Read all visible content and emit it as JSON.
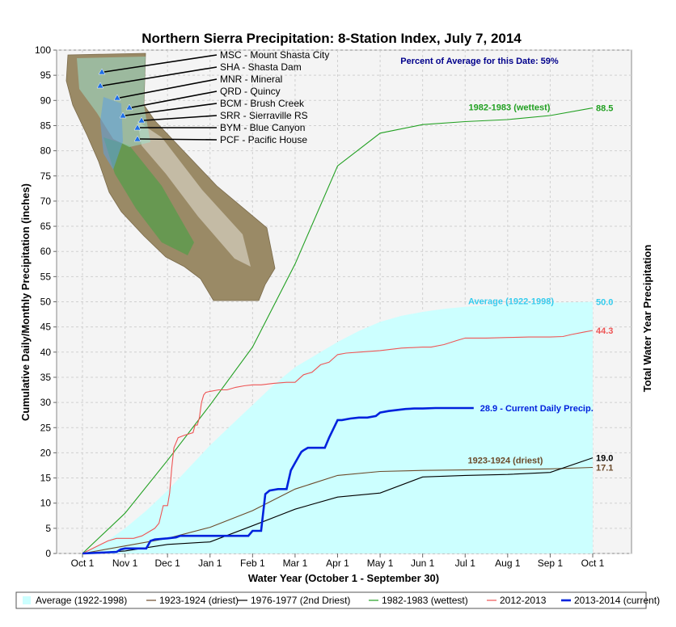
{
  "chart_data": {
    "type": "line",
    "title": "Northern Sierra Precipitation: 8-Station Index, July 7, 2014",
    "xlabel": "Water Year (October 1 - September 30)",
    "ylabel": "Cumulative Daily/Monthly Precipitation (inches)",
    "y2label": "Total Water Year Precipitation",
    "percent_note": "Percent of Average for this Date: 59%",
    "x_ticks": [
      "Oct 1",
      "Nov 1",
      "Dec 1",
      "Jan 1",
      "Feb 1",
      "Mar 1",
      "Apr 1",
      "May 1",
      "Jun 1",
      "Jul 1",
      "Aug 1",
      "Sep 1",
      "Oct 1"
    ],
    "ylim": [
      0,
      100
    ],
    "y_ticks": [
      0,
      5,
      10,
      15,
      20,
      25,
      30,
      35,
      40,
      45,
      50,
      55,
      60,
      65,
      70,
      75,
      80,
      85,
      90,
      95,
      100
    ],
    "grid": true,
    "legend_position": "bottom",
    "colors": {
      "average": "#ccffff",
      "average_label": "#33ccee",
      "driest": "#6b4a2a",
      "dry2": "#000000",
      "wettest": "#22a022",
      "y2013": "#ee5555",
      "current": "#0022dd",
      "note": "#00008b"
    },
    "series": [
      {
        "key": "average",
        "name": "Average (1922-1998)",
        "type": "area",
        "x": [
          0,
          0.5,
          1,
          1.5,
          2,
          2.5,
          3,
          3.5,
          4,
          4.5,
          5,
          5.5,
          6,
          6.5,
          7,
          7.5,
          8,
          8.5,
          9,
          10,
          11,
          12
        ],
        "y": [
          0,
          2,
          5,
          8.5,
          12.5,
          17,
          21.5,
          25.5,
          29.5,
          33.5,
          37,
          39.5,
          42,
          44.2,
          46,
          47.2,
          48,
          48.6,
          49,
          49.5,
          49.8,
          50
        ],
        "label": "Average (1922-1998)",
        "end_value": "50.0"
      },
      {
        "key": "driest",
        "name": "1923-1924 (driest)",
        "x": [
          0,
          1,
          2,
          3,
          4,
          5,
          6,
          7,
          8,
          9,
          10,
          11,
          12
        ],
        "y": [
          0,
          1.5,
          3,
          5.2,
          8.5,
          12.8,
          15.5,
          16.3,
          16.5,
          16.6,
          16.7,
          16.8,
          17.1
        ],
        "label": "1923-1924 (driest)",
        "end_value": "17.1"
      },
      {
        "key": "dry2",
        "name": "1976-1977 (2nd Driest)",
        "x": [
          0,
          1,
          2,
          3,
          4,
          5,
          6,
          7,
          8,
          9,
          10,
          11,
          12
        ],
        "y": [
          0,
          0.5,
          1.8,
          2.3,
          5.5,
          8.8,
          11.2,
          12,
          15.2,
          15.5,
          15.7,
          16.1,
          19
        ],
        "end_value": "19.0"
      },
      {
        "key": "wettest",
        "name": "1982-1983 (wettest)",
        "x": [
          0,
          1,
          2,
          3,
          4,
          5,
          6,
          7,
          8,
          9,
          10,
          11,
          12
        ],
        "y": [
          0,
          8,
          18.5,
          29.5,
          41,
          57.5,
          77,
          83.5,
          85.2,
          85.8,
          86.2,
          87,
          88.5
        ],
        "label": "1982-1983 (wettest)",
        "end_value": "88.5"
      },
      {
        "key": "y2013",
        "name": "2012-2013",
        "x": [
          0,
          0.6,
          0.8,
          1,
          1.2,
          1.4,
          1.5,
          1.7,
          1.8,
          1.9,
          2,
          2.05,
          2.1,
          2.15,
          2.25,
          2.4,
          2.6,
          2.65,
          2.7,
          2.75,
          2.8,
          2.85,
          2.9,
          3,
          3.2,
          3.4,
          3.6,
          3.8,
          4,
          4.2,
          4.5,
          4.8,
          5,
          5.2,
          5.4,
          5.6,
          5.8,
          6,
          6.2,
          6.5,
          7,
          7.5,
          8,
          8.2,
          8.5,
          8.8,
          9,
          9.2,
          9.5,
          10,
          10.5,
          11,
          11.3,
          11.5,
          11.8,
          12
        ],
        "y": [
          0,
          2.5,
          3,
          3,
          3,
          3.5,
          4,
          5,
          6,
          9.5,
          9.5,
          12,
          17,
          21,
          23,
          23.5,
          24,
          25.5,
          25.5,
          27,
          30,
          31.5,
          32,
          32.2,
          32.5,
          32.5,
          33,
          33.3,
          33.5,
          33.5,
          33.8,
          34,
          34,
          35.5,
          36,
          37.5,
          38,
          39.5,
          39.8,
          40,
          40.3,
          40.8,
          41,
          41,
          41.5,
          42.3,
          42.8,
          42.8,
          42.8,
          42.9,
          43,
          43,
          43.1,
          43.5,
          44,
          44.3
        ],
        "end_value": "44.3"
      },
      {
        "key": "current",
        "name": "2013-2014 (current)",
        "x": [
          0,
          0.8,
          0.9,
          1,
          1.2,
          1.5,
          1.6,
          1.7,
          2,
          2.2,
          2.3,
          2.5,
          3,
          3.5,
          3.9,
          4,
          4.2,
          4.3,
          4.4,
          4.6,
          4.8,
          4.9,
          5,
          5.1,
          5.15,
          5.2,
          5.3,
          5.4,
          5.7,
          5.8,
          6,
          6.1,
          6.3,
          6.5,
          6.7,
          6.9,
          7,
          7.2,
          7.4,
          7.6,
          7.8,
          8,
          8.3,
          8.6,
          9,
          9.2
        ],
        "y": [
          0,
          0.3,
          0.8,
          1,
          1,
          1,
          2.5,
          2.8,
          3,
          3.2,
          3.5,
          3.5,
          3.5,
          3.5,
          3.5,
          4.5,
          4.5,
          11.8,
          12.5,
          12.8,
          12.8,
          16.5,
          18,
          19.5,
          20.2,
          20.5,
          21,
          21,
          21,
          23,
          26.5,
          26.5,
          26.8,
          27,
          27,
          27.3,
          28,
          28.3,
          28.5,
          28.7,
          28.8,
          28.8,
          28.9,
          28.9,
          28.9,
          28.9
        ],
        "label": "28.9 -  Current Daily Precip.",
        "end_value": ""
      }
    ],
    "legend": [
      {
        "key": "average",
        "text": "Average (1922-1998)"
      },
      {
        "key": "driest",
        "text": "1923-1924 (driest)"
      },
      {
        "key": "dry2",
        "text": "1976-1977 (2nd Driest)"
      },
      {
        "key": "wettest",
        "text": "1982-1983 (wettest)"
      },
      {
        "key": "y2013",
        "text": "2012-2013"
      },
      {
        "key": "current",
        "text": "2013-2014 (current)"
      }
    ],
    "stations": [
      {
        "code": "MSC",
        "label": "MSC - Mount Shasta City"
      },
      {
        "code": "SHA",
        "label": "SHA - Shasta Dam"
      },
      {
        "code": "MNR",
        "label": "MNR - Mineral"
      },
      {
        "code": "QRD",
        "label": "QRD - Quincy"
      },
      {
        "code": "BCM",
        "label": "BCM - Brush Creek"
      },
      {
        "code": "SRR",
        "label": "SRR - Sierraville RS"
      },
      {
        "code": "BYM",
        "label": "BYM - Blue Canyon"
      },
      {
        "code": "PCF",
        "label": "PCF - Pacific House"
      }
    ]
  }
}
